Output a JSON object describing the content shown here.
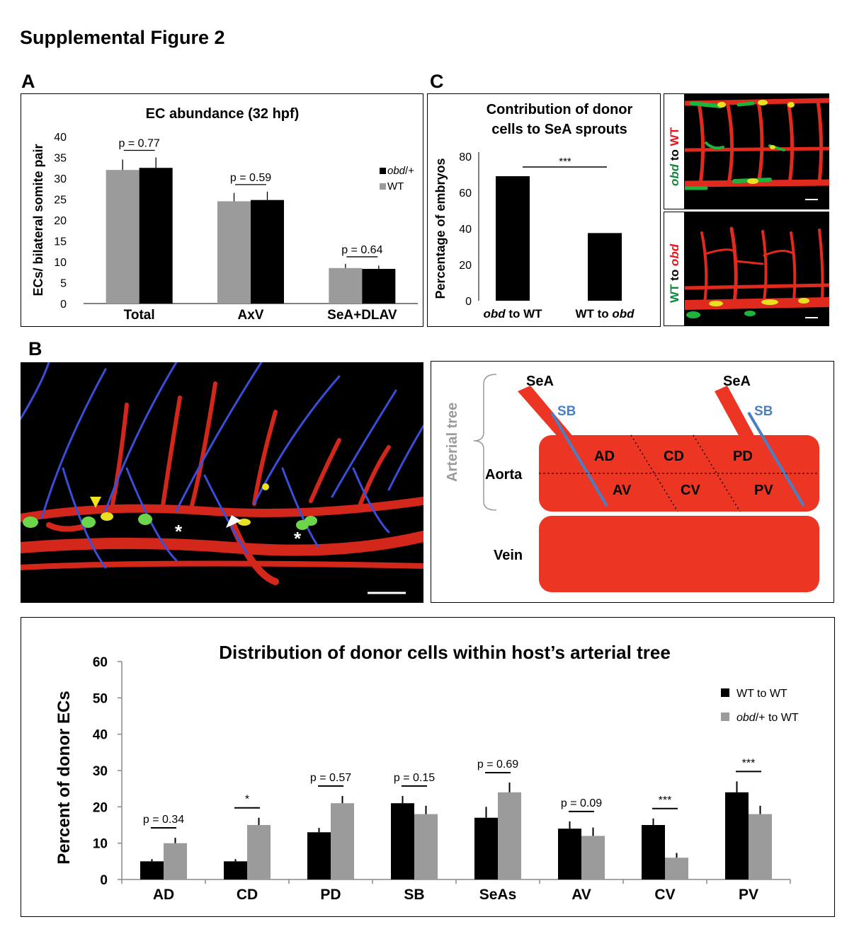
{
  "figure_title": "Supplemental Figure 2",
  "panel_labels": {
    "a": "A",
    "b": "B",
    "c": "C"
  },
  "colors": {
    "black": "#000000",
    "gray": "#9b9b9b",
    "red": "#e8392a",
    "blue": "#4a7fc4",
    "green": "#0a8a3a",
    "label_red": "#e8141e"
  },
  "panel_a": {
    "chart_data": {
      "type": "bar",
      "title": "EC abundance (32 hpf)",
      "ylabel": "ECs/ bilateral somite pair",
      "ylim": [
        0,
        40
      ],
      "yticks": [
        "0",
        "5",
        "10",
        "15",
        "20",
        "25",
        "30",
        "35",
        "40"
      ],
      "categories": [
        "Total",
        "AxV",
        "SeA+DLAV"
      ],
      "series": [
        {
          "name": "WT",
          "color": "#9b9b9b",
          "values": [
            32,
            24.5,
            8.5
          ],
          "errors": [
            2.5,
            2.0,
            1.0
          ]
        },
        {
          "name": "obd/+",
          "color": "#000000",
          "values": [
            32.5,
            24.8,
            8.3
          ],
          "errors": [
            2.5,
            2.0,
            0.8
          ]
        }
      ],
      "pvalues": [
        "p = 0.77",
        "p = 0.59",
        "p = 0.64"
      ],
      "legend": [
        {
          "italic": "obd",
          "rest": "/+",
          "color": "#000000"
        },
        {
          "italic": "",
          "rest": "WT",
          "color": "#9b9b9b"
        }
      ]
    }
  },
  "panel_c": {
    "chart_data": {
      "type": "bar",
      "title_line1": "Contribution of donor",
      "title_line2": "cells to SeA sprouts",
      "ylabel": "Percentage of embryos",
      "ylim": [
        0,
        80
      ],
      "yticks": [
        "0",
        "20",
        "40",
        "60",
        "80"
      ],
      "categories": [
        {
          "italic_first": "obd",
          "mid": " to ",
          "last": "WT",
          "last_italic": false
        },
        {
          "italic_first": "",
          "mid": "WT  to ",
          "last": "obd",
          "last_italic": true
        }
      ],
      "values": [
        69,
        37.5
      ],
      "significance": "***"
    },
    "micro_top": {
      "part1": "obd",
      "part2": " to ",
      "part3": "WT"
    },
    "micro_bottom": {
      "part1": "WT",
      "part2": " to ",
      "part3": "obd"
    }
  },
  "panel_b": {
    "asterisk": "*",
    "schematic": {
      "arterial_tree": "Arterial tree",
      "aorta": "Aorta",
      "vein": "Vein",
      "sea_left": "SeA",
      "sea_right": "SeA",
      "sb_left": "SB",
      "sb_right": "SB",
      "regions": [
        "AD",
        "CD",
        "PD",
        "AV",
        "CV",
        "PV"
      ]
    }
  },
  "panel_d": {
    "chart_data": {
      "type": "bar",
      "title": "Distribution of donor cells within host’s arterial tree",
      "ylabel": "Percent of donor ECs",
      "ylim": [
        0,
        60
      ],
      "yticks": [
        "0",
        "10",
        "20",
        "30",
        "40",
        "50",
        "60"
      ],
      "categories": [
        "AD",
        "CD",
        "PD",
        "SB",
        "SeAs",
        "AV",
        "CV",
        "PV"
      ],
      "series": [
        {
          "name": "WT to WT",
          "color": "#000000",
          "values": [
            5,
            5,
            13,
            21,
            17,
            14,
            15,
            24
          ],
          "errors": [
            0.6,
            0.6,
            1.2,
            2.0,
            3.0,
            2.0,
            1.8,
            3.0
          ]
        },
        {
          "name": "obd/+ to WT",
          "color": "#9b9b9b",
          "values": [
            10,
            15,
            21,
            18,
            24,
            12,
            6,
            18
          ],
          "errors": [
            1.5,
            2.0,
            2.0,
            2.3,
            2.7,
            2.3,
            1.3,
            2.3
          ]
        }
      ],
      "annotations": [
        "p = 0.34",
        "*",
        "p = 0.57",
        "p = 0.15",
        "p = 0.69",
        "p = 0.09",
        "***",
        "***"
      ],
      "legend": [
        {
          "italic": "",
          "rest": "WT to WT",
          "color": "#000000"
        },
        {
          "italic": "obd",
          "rest": "/+ to WT",
          "color": "#9b9b9b"
        }
      ]
    }
  }
}
